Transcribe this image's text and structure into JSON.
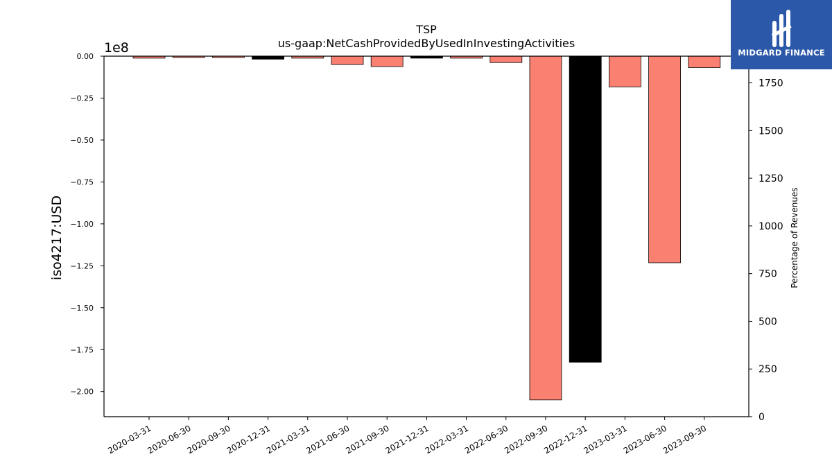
{
  "chart_data": {
    "type": "bar",
    "title": "TSP",
    "subtitle": "us-gaap:NetCashProvidedByUsedInInvestingActivities",
    "ylabel": "iso4217:USD",
    "y2label": "Percentage of Revenues",
    "y_offset_text": "1e8",
    "ylim": [
      -2.15,
      0.0
    ],
    "y_ticks": [
      "0.00",
      "−0.25",
      "−0.50",
      "−0.75",
      "−1.00",
      "−1.25",
      "−1.50",
      "−1.75",
      "−2.00"
    ],
    "y_tick_values": [
      0,
      -0.25,
      -0.5,
      -0.75,
      -1.0,
      -1.25,
      -1.5,
      -1.75,
      -2.0
    ],
    "y2lim": [
      0,
      1890
    ],
    "y2_ticks": [
      "0",
      "250",
      "500",
      "750",
      "1000",
      "1250",
      "1500",
      "1750"
    ],
    "y2_tick_values": [
      0,
      250,
      500,
      750,
      1000,
      1250,
      1500,
      1750
    ],
    "categories": [
      "2020-03-31",
      "2020-06-30",
      "2020-09-30",
      "2020-12-31",
      "2021-03-31",
      "2021-06-30",
      "2021-09-30",
      "2021-12-31",
      "2022-03-31",
      "2022-06-30",
      "2022-09-30",
      "2022-12-31",
      "2023-03-31",
      "2023-06-30",
      "2023-09-30"
    ],
    "values": [
      -0.012,
      -0.008,
      -0.008,
      -0.018,
      -0.012,
      -0.05,
      -0.062,
      -0.012,
      -0.012,
      -0.038,
      -2.05,
      -1.825,
      -0.183,
      -1.232,
      -0.068
    ],
    "bar_colors": [
      "#fa8072",
      "#fa8072",
      "#fa8072",
      "#000000",
      "#fa8072",
      "#fa8072",
      "#fa8072",
      "#000000",
      "#fa8072",
      "#fa8072",
      "#fa8072",
      "#000000",
      "#fa8072",
      "#fa8072",
      "#fa8072"
    ],
    "grid": false,
    "legend": "none"
  },
  "logo": {
    "text": "MIDGARD FINANCE",
    "background": "#2b58a8",
    "icon": "midgard-logo-icon"
  }
}
